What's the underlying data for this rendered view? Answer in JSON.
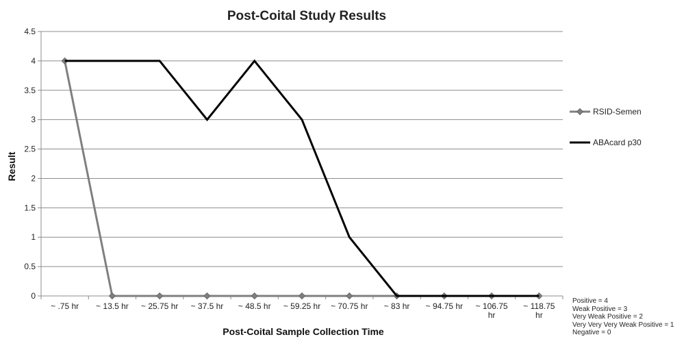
{
  "chart_data": {
    "type": "line",
    "title": "Post-Coital Study Results",
    "xlabel": "Post-Coital Sample Collection Time",
    "ylabel": "Result",
    "categories": [
      [
        "~ .75 hr"
      ],
      [
        "~ 13.5 hr"
      ],
      [
        "~ 25.75 hr"
      ],
      [
        "~ 37.5 hr"
      ],
      [
        "~ 48.5 hr"
      ],
      [
        "~ 59.25 hr"
      ],
      [
        "~ 70.75 hr"
      ],
      [
        "~ 83 hr"
      ],
      [
        "~ 94.75 hr"
      ],
      [
        "~ 106.75",
        "hr"
      ],
      [
        "~ 118.75",
        "hr"
      ]
    ],
    "ylim": [
      0,
      4.5
    ],
    "yticks": [
      "0",
      "0.5",
      "1",
      "1.5",
      "2",
      "2.5",
      "3",
      "3.5",
      "4",
      "4.5"
    ],
    "grid": true,
    "legend_position": "right",
    "series": [
      {
        "name": "RSID-Semen",
        "color": "#7f7f7f",
        "marker": "diamond",
        "values": [
          4,
          0,
          0,
          0,
          0,
          0,
          0,
          0,
          0,
          0,
          0
        ]
      },
      {
        "name": "ABAcard p30",
        "color": "#000000",
        "marker": "none",
        "values": [
          4,
          4,
          4,
          3,
          4,
          3,
          1,
          0,
          0,
          0,
          0
        ]
      }
    ],
    "notes": [
      "Positive = 4",
      "Weak Positive = 3",
      "Very Weak Positive = 2",
      "Very Very Very Weak Positive = 1",
      "Negative = 0"
    ]
  }
}
